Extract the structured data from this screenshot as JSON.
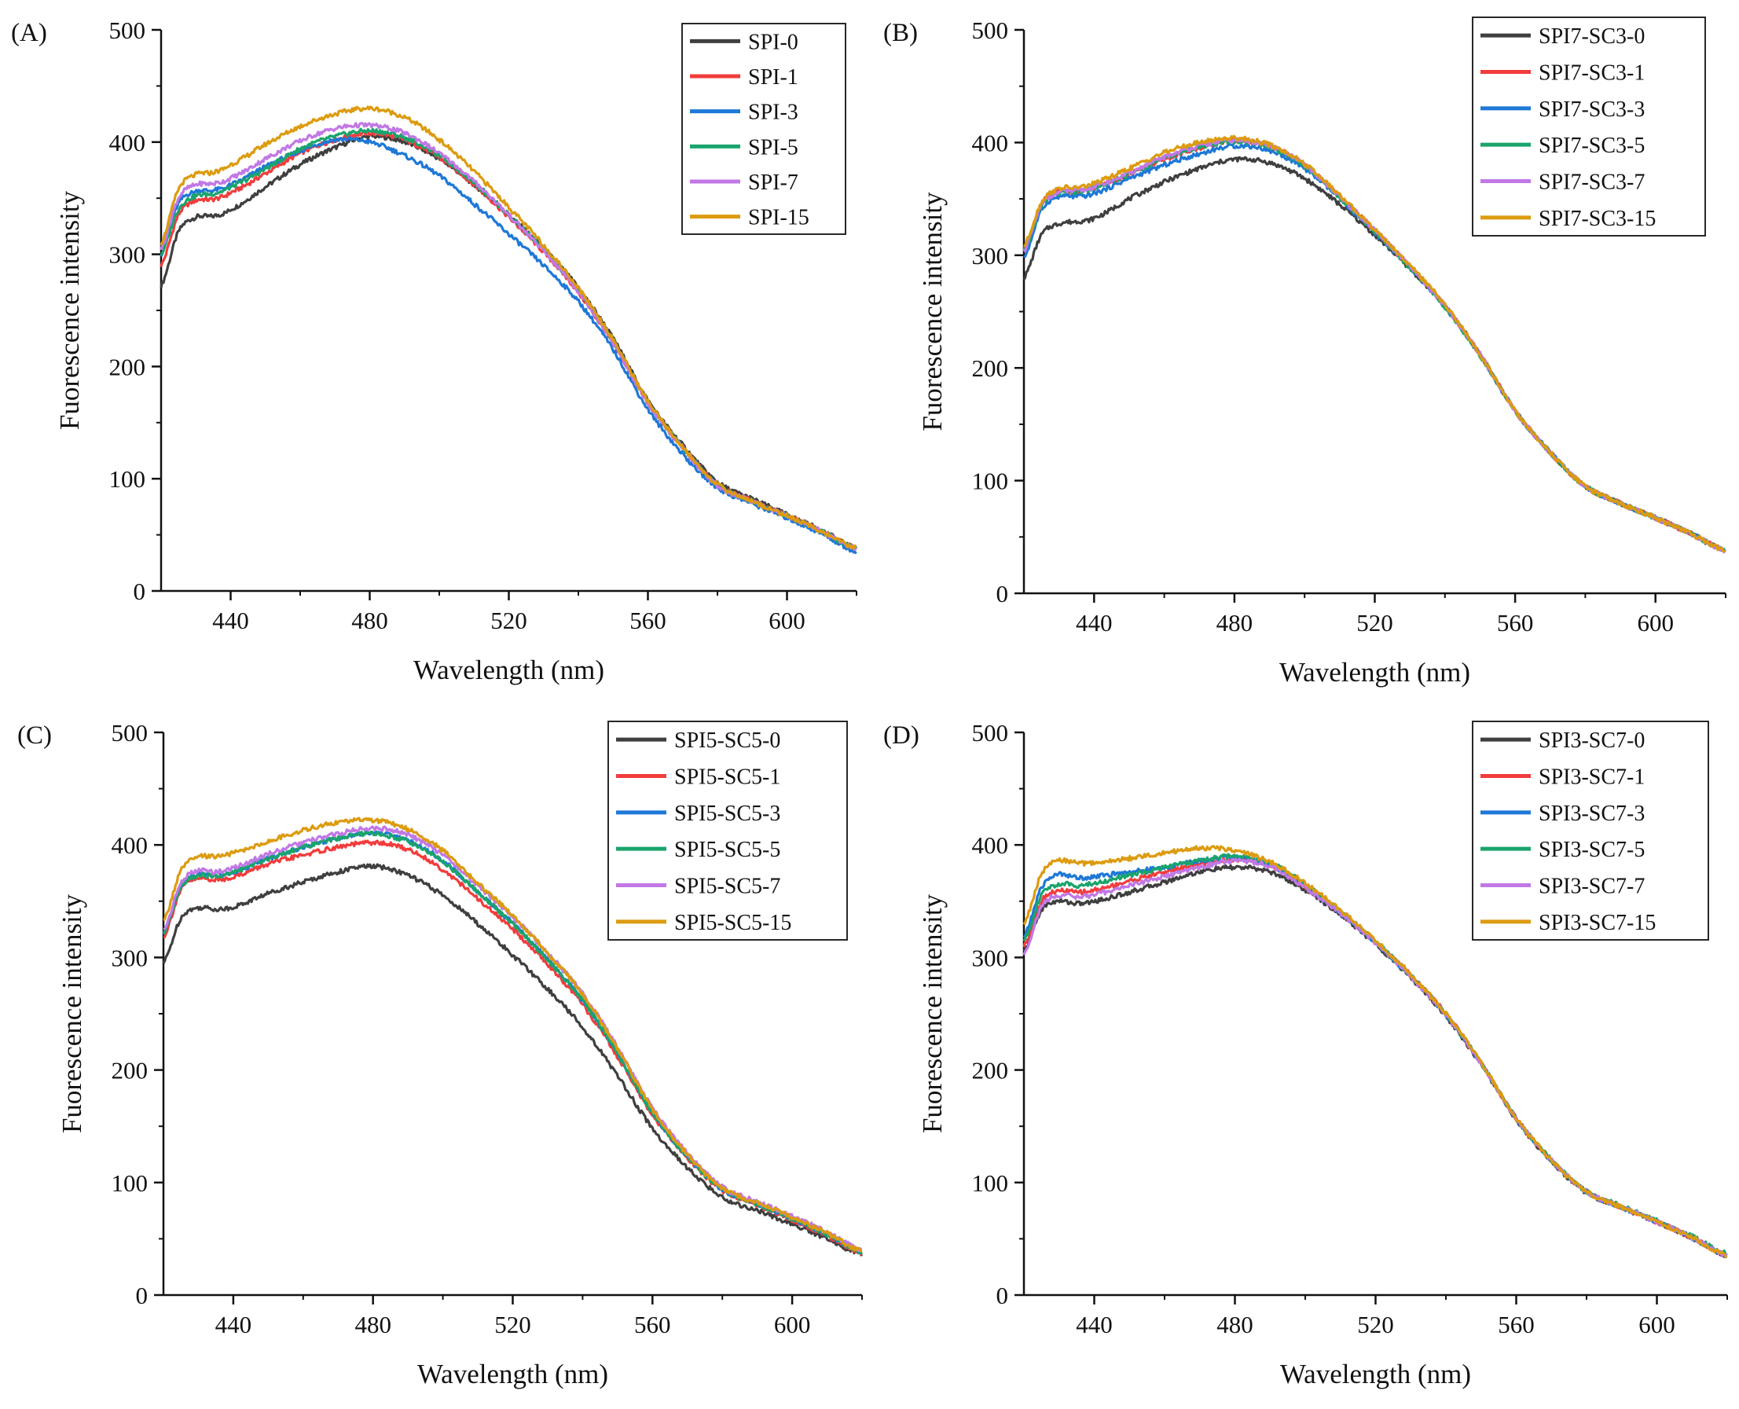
{
  "colors": [
    "#3f3f3f",
    "#f23c3c",
    "#1e78d7",
    "#1aa46c",
    "#c178e6",
    "#dc9b10"
  ],
  "chart_data": [
    {
      "type": "line",
      "panel_label": "(A)",
      "xlabel": "Wavelength (nm)",
      "ylabel": "Fuorescence intensity",
      "xlim": [
        420,
        620
      ],
      "ylim": [
        0,
        500
      ],
      "xticks": [
        440,
        480,
        520,
        560,
        600
      ],
      "yticks": [
        0,
        100,
        200,
        300,
        400,
        500
      ],
      "legend_position": "top-right",
      "x": [
        420,
        425,
        430,
        435,
        440,
        450,
        460,
        470,
        480,
        490,
        500,
        510,
        520,
        530,
        540,
        550,
        560,
        570,
        580,
        590,
        600,
        610,
        620
      ],
      "series": [
        {
          "name": "SPI-0",
          "values": [
            272,
            320,
            333,
            334,
            340,
            360,
            380,
            395,
            405,
            400,
            385,
            362,
            335,
            305,
            270,
            225,
            170,
            130,
            97,
            82,
            68,
            54,
            38
          ]
        },
        {
          "name": "SPI-1",
          "values": [
            290,
            335,
            348,
            349,
            355,
            372,
            390,
            402,
            408,
            402,
            386,
            362,
            333,
            302,
            266,
            220,
            168,
            128,
            95,
            80,
            67,
            53,
            38
          ]
        },
        {
          "name": "SPI-3",
          "values": [
            300,
            345,
            356,
            357,
            362,
            378,
            392,
            402,
            400,
            388,
            370,
            345,
            318,
            290,
            258,
            215,
            162,
            122,
            92,
            78,
            65,
            51,
            35
          ]
        },
        {
          "name": "SPI-5",
          "values": [
            300,
            340,
            352,
            354,
            360,
            376,
            394,
            405,
            410,
            404,
            388,
            364,
            335,
            304,
            268,
            222,
            168,
            128,
            95,
            80,
            67,
            53,
            38
          ]
        },
        {
          "name": "SPI-7",
          "values": [
            305,
            350,
            362,
            363,
            368,
            385,
            401,
            412,
            415,
            408,
            390,
            365,
            335,
            303,
            267,
            221,
            167,
            127,
            94,
            80,
            67,
            53,
            38
          ]
        },
        {
          "name": "SPI-15",
          "values": [
            310,
            358,
            371,
            373,
            380,
            398,
            414,
            425,
            430,
            422,
            402,
            374,
            342,
            308,
            270,
            224,
            169,
            128,
            95,
            80,
            67,
            53,
            38
          ]
        }
      ]
    },
    {
      "type": "line",
      "panel_label": "(B)",
      "xlabel": "Wavelength (nm)",
      "ylabel": "Fuorescence intensity",
      "xlim": [
        420,
        620
      ],
      "ylim": [
        0,
        500
      ],
      "xticks": [
        440,
        480,
        520,
        560,
        600
      ],
      "yticks": [
        0,
        100,
        200,
        300,
        400,
        500
      ],
      "legend_position": "top-right",
      "x": [
        420,
        425,
        430,
        435,
        440,
        450,
        460,
        470,
        480,
        490,
        500,
        510,
        520,
        530,
        540,
        550,
        560,
        570,
        580,
        590,
        600,
        610,
        620
      ],
      "series": [
        {
          "name": "SPI7-SC3-0",
          "values": [
            280,
            318,
            328,
            330,
            333,
            350,
            365,
            377,
            385,
            382,
            368,
            345,
            318,
            288,
            255,
            212,
            162,
            125,
            95,
            80,
            67,
            53,
            38
          ]
        },
        {
          "name": "SPI7-SC3-1",
          "values": [
            305,
            345,
            357,
            356,
            360,
            372,
            385,
            395,
            402,
            397,
            380,
            352,
            322,
            290,
            255,
            212,
            162,
            125,
            95,
            80,
            67,
            53,
            38
          ]
        },
        {
          "name": "SPI7-SC3-3",
          "values": [
            298,
            340,
            352,
            352,
            355,
            368,
            380,
            390,
            397,
            393,
            377,
            350,
            320,
            289,
            254,
            211,
            162,
            125,
            95,
            80,
            67,
            53,
            38
          ]
        },
        {
          "name": "SPI7-SC3-5",
          "values": [
            303,
            343,
            355,
            356,
            360,
            372,
            386,
            396,
            401,
            396,
            379,
            351,
            321,
            289,
            254,
            211,
            162,
            125,
            95,
            80,
            67,
            53,
            38
          ]
        },
        {
          "name": "SPI7-SC3-7",
          "values": [
            304,
            344,
            356,
            357,
            361,
            373,
            387,
            397,
            402,
            397,
            380,
            352,
            322,
            290,
            255,
            212,
            162,
            125,
            95,
            80,
            67,
            53,
            38
          ]
        },
        {
          "name": "SPI7-SC3-15",
          "values": [
            308,
            347,
            359,
            360,
            364,
            377,
            391,
            400,
            404,
            398,
            381,
            353,
            323,
            291,
            256,
            212,
            162,
            125,
            95,
            80,
            67,
            53,
            38
          ]
        }
      ]
    },
    {
      "type": "line",
      "panel_label": "(C)",
      "xlabel": "Wavelength (nm)",
      "ylabel": "Fuorescence intensity",
      "xlim": [
        420,
        620
      ],
      "ylim": [
        0,
        500
      ],
      "xticks": [
        440,
        480,
        520,
        560,
        600
      ],
      "yticks": [
        0,
        100,
        200,
        300,
        400,
        500
      ],
      "legend_position": "top-right",
      "x": [
        420,
        425,
        430,
        435,
        440,
        450,
        460,
        470,
        480,
        490,
        500,
        510,
        520,
        530,
        540,
        550,
        560,
        570,
        580,
        590,
        600,
        610,
        620
      ],
      "series": [
        {
          "name": "SPI5-SC5-0",
          "values": [
            295,
            335,
            344,
            343,
            345,
            357,
            367,
            376,
            381,
            373,
            355,
            330,
            302,
            272,
            238,
            195,
            148,
            113,
            87,
            75,
            63,
            50,
            36
          ]
        },
        {
          "name": "SPI5-SC5-1",
          "values": [
            318,
            360,
            370,
            369,
            372,
            383,
            391,
            398,
            402,
            396,
            378,
            352,
            325,
            294,
            258,
            212,
            160,
            122,
            93,
            80,
            67,
            53,
            37
          ]
        },
        {
          "name": "SPI5-SC5-3",
          "values": [
            322,
            363,
            374,
            373,
            376,
            388,
            398,
            406,
            411,
            404,
            386,
            358,
            330,
            298,
            262,
            215,
            162,
            123,
            94,
            81,
            68,
            54,
            38
          ]
        },
        {
          "name": "SPI5-SC5-5",
          "values": [
            320,
            362,
            373,
            372,
            376,
            388,
            398,
            406,
            410,
            403,
            385,
            358,
            330,
            298,
            262,
            215,
            162,
            123,
            94,
            81,
            68,
            54,
            38
          ]
        },
        {
          "name": "SPI5-SC5-7",
          "values": [
            324,
            366,
            377,
            376,
            380,
            392,
            402,
            410,
            415,
            409,
            391,
            364,
            336,
            304,
            268,
            220,
            166,
            126,
            96,
            83,
            70,
            56,
            40
          ]
        },
        {
          "name": "SPI5-SC5-15",
          "values": [
            332,
            377,
            389,
            390,
            393,
            403,
            413,
            420,
            422,
            414,
            395,
            366,
            337,
            304,
            267,
            219,
            165,
            125,
            95,
            82,
            69,
            55,
            39
          ]
        }
      ]
    },
    {
      "type": "line",
      "panel_label": "(D)",
      "xlabel": "Wavelength (nm)",
      "ylabel": "Fuorescence intensity",
      "xlim": [
        420,
        620
      ],
      "ylim": [
        0,
        500
      ],
      "xticks": [
        440,
        480,
        520,
        560,
        600
      ],
      "yticks": [
        0,
        100,
        200,
        300,
        400,
        500
      ],
      "legend_position": "top-right",
      "x": [
        420,
        425,
        430,
        435,
        440,
        450,
        460,
        470,
        480,
        490,
        500,
        510,
        520,
        530,
        540,
        550,
        560,
        570,
        580,
        590,
        600,
        610,
        620
      ],
      "series": [
        {
          "name": "SPI3-SC7-0",
          "values": [
            305,
            342,
            350,
            348,
            350,
            358,
            367,
            376,
            380,
            376,
            360,
            338,
            312,
            282,
            248,
            205,
            156,
            119,
            91,
            78,
            65,
            51,
            35
          ]
        },
        {
          "name": "SPI3-SC7-1",
          "values": [
            310,
            350,
            359,
            358,
            360,
            368,
            376,
            383,
            387,
            382,
            363,
            340,
            314,
            284,
            250,
            206,
            157,
            120,
            92,
            78,
            65,
            51,
            35
          ]
        },
        {
          "name": "SPI3-SC7-3",
          "values": [
            318,
            362,
            374,
            371,
            372,
            376,
            380,
            386,
            389,
            382,
            363,
            340,
            313,
            283,
            249,
            206,
            157,
            120,
            92,
            78,
            65,
            51,
            35
          ]
        },
        {
          "name": "SPI3-SC7-5",
          "values": [
            315,
            355,
            365,
            364,
            366,
            373,
            380,
            386,
            390,
            384,
            365,
            341,
            314,
            284,
            250,
            206,
            157,
            120,
            92,
            79,
            66,
            52,
            37
          ]
        },
        {
          "name": "SPI3-SC7-7",
          "values": [
            303,
            345,
            355,
            354,
            356,
            364,
            372,
            380,
            386,
            381,
            362,
            339,
            313,
            283,
            249,
            206,
            157,
            120,
            92,
            78,
            65,
            51,
            35
          ]
        },
        {
          "name": "SPI3-SC7-15",
          "values": [
            330,
            374,
            386,
            384,
            384,
            388,
            393,
            397,
            395,
            385,
            366,
            342,
            315,
            285,
            250,
            207,
            157,
            120,
            92,
            78,
            65,
            51,
            35
          ]
        }
      ]
    }
  ]
}
